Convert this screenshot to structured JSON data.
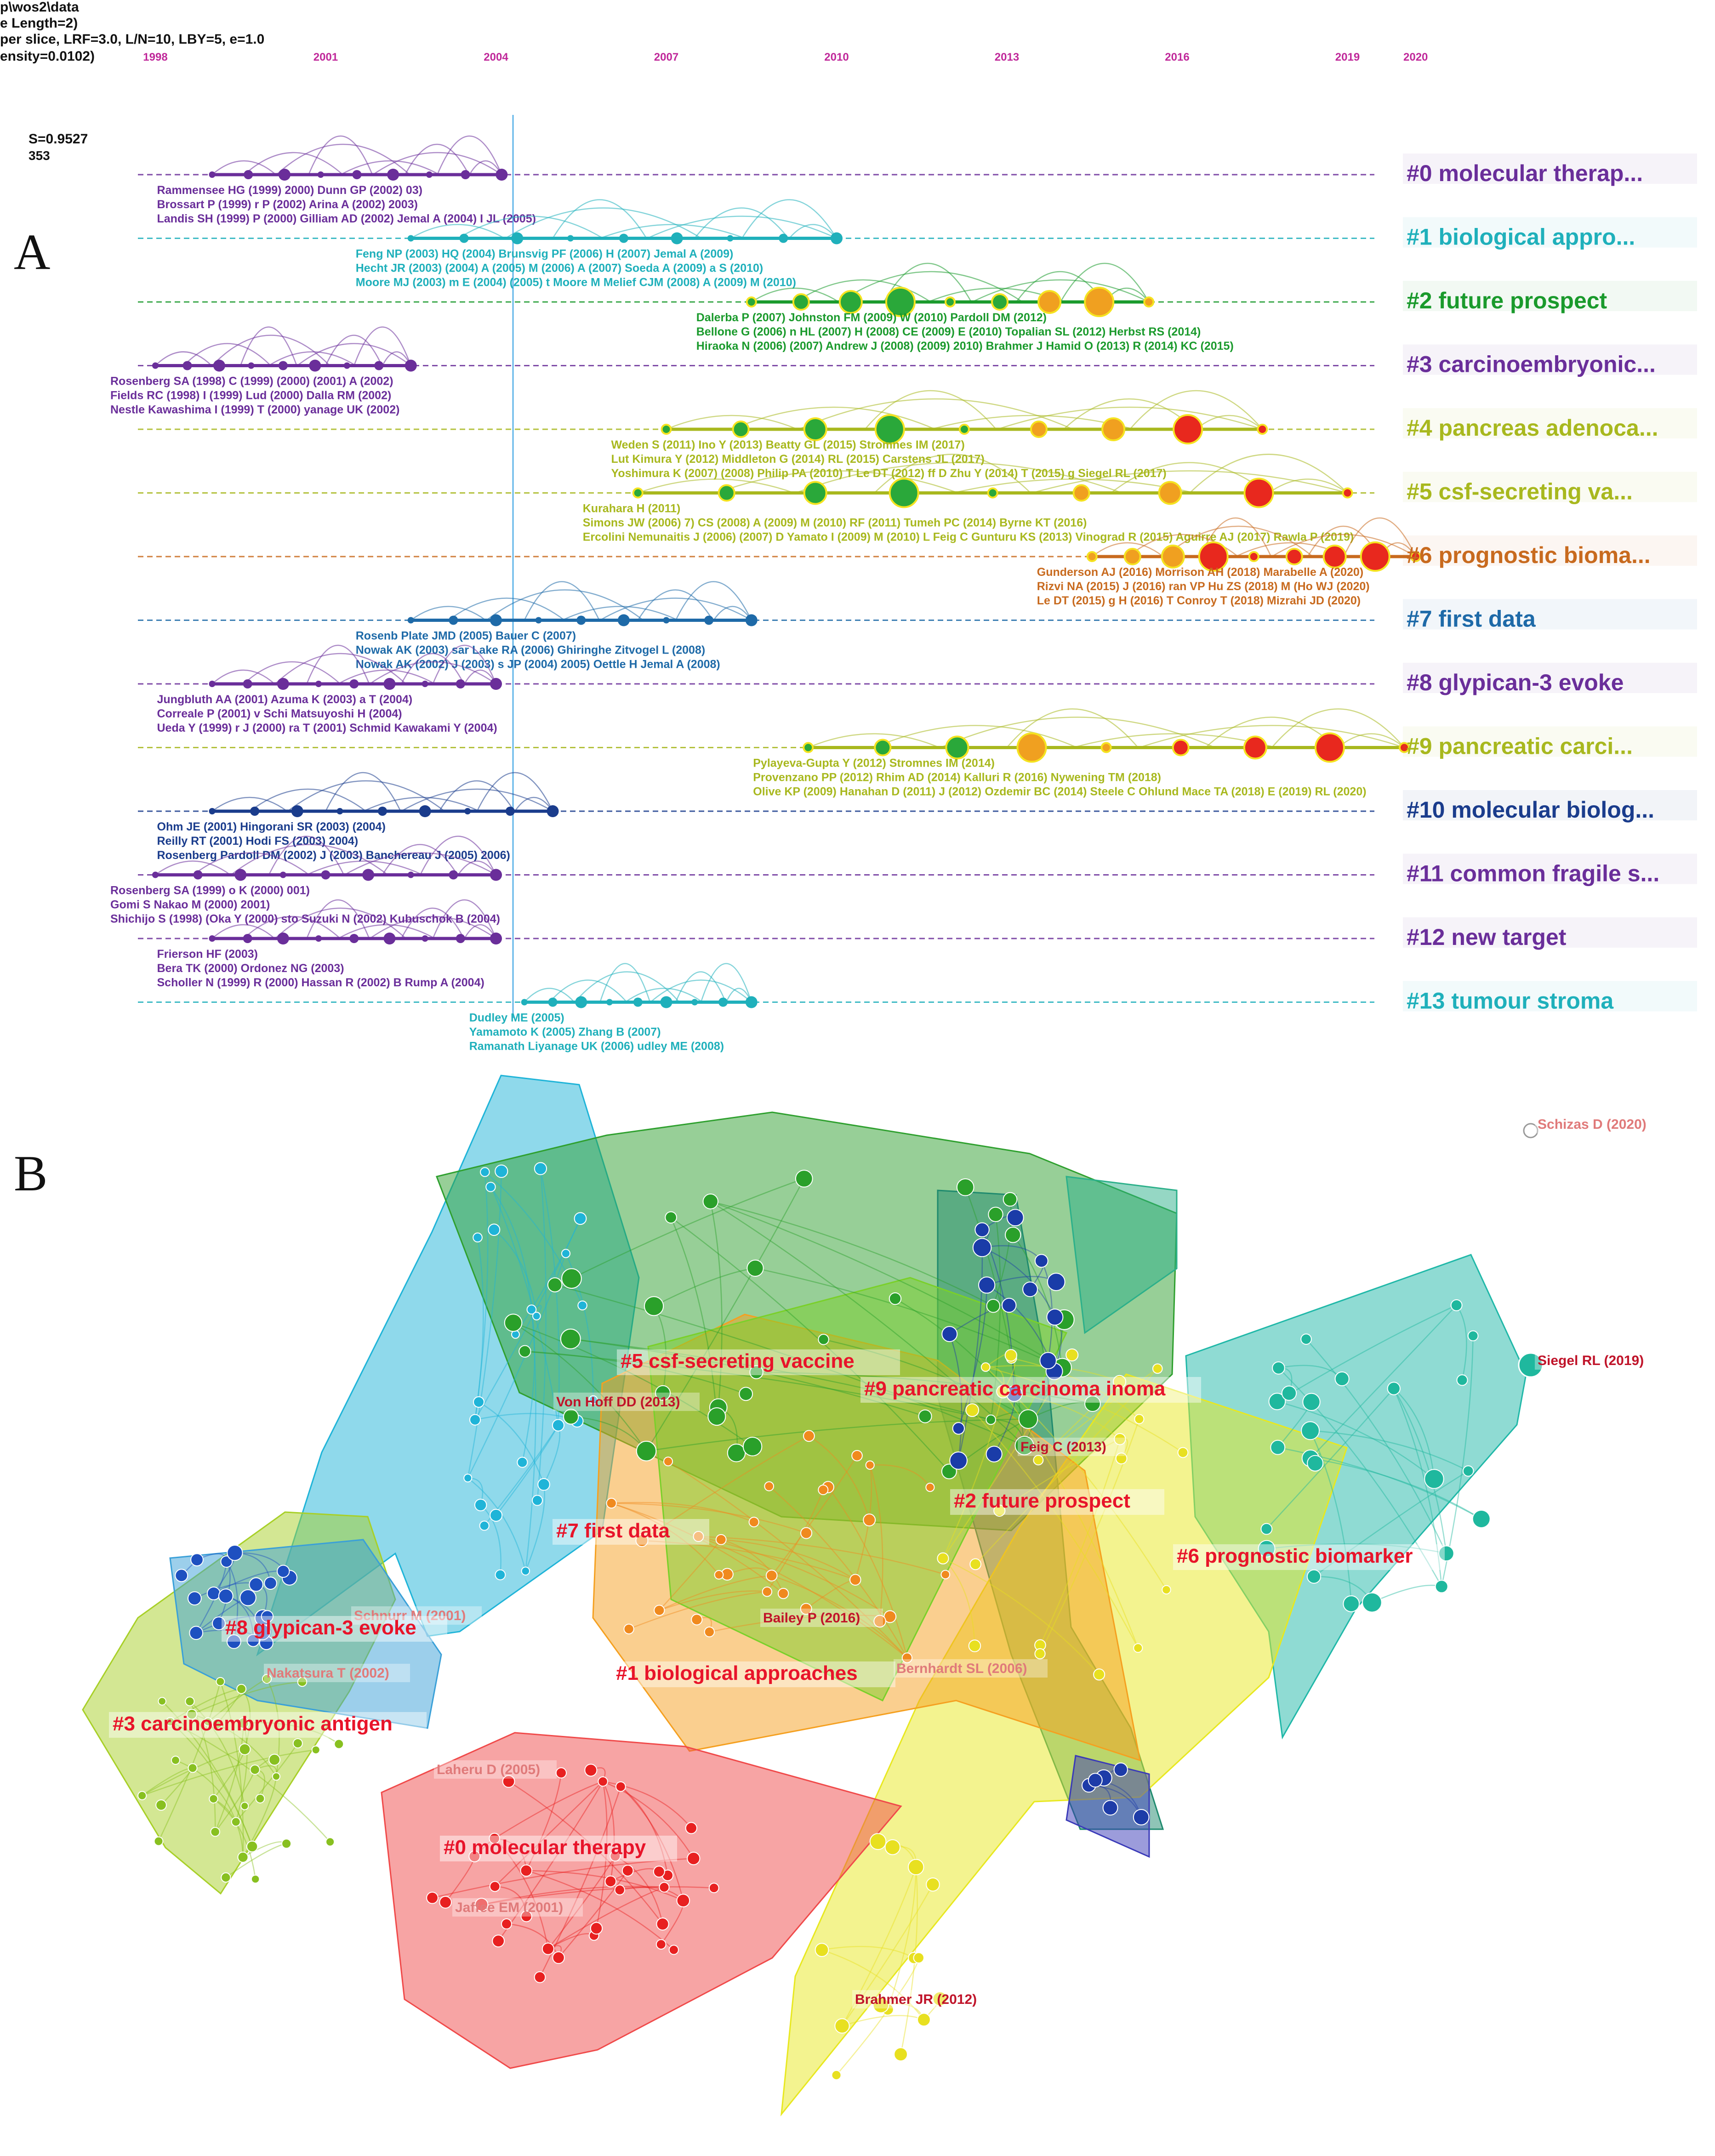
{
  "panel_a": {
    "letter": "A",
    "meta": [
      "p\\wos2\\data",
      "e Length=2)",
      "per slice, LRF=3.0, L/N=10, LBY=5, e=1.0",
      "ensity=0.0102)",
      "S=0.9527",
      "353"
    ],
    "years": [
      "1998",
      "2001",
      "2004",
      "2007",
      "2010",
      "2013",
      "2016",
      "2019",
      "2020"
    ],
    "year_values": [
      1998,
      2001,
      2004,
      2007,
      2010,
      2013,
      2016,
      2019,
      2020.2
    ],
    "clusters": [
      {
        "id": "#0",
        "label": "#0 molecular therap...",
        "color": "#6a2e9a",
        "span": [
          1999,
          2004.1
        ],
        "cites": [
          "Rammensee HG (1999) 2000) Dunn GP (2002) 03)",
          "Brossart P (1999) r P (2002) Arina A (2002) 2003)",
          "Landis SH (1999) P (2000) Gilliam AD (2002) Jemal A (2004) I JL (2005)"
        ]
      },
      {
        "id": "#1",
        "label": "#1 biological appro...",
        "color": "#1fb0bb",
        "span": [
          2002.5,
          2010
        ],
        "cites": [
          "Feng NP (2003) HQ (2004) Brunsvig PF (2006) H (2007) Jemal A (2009)",
          "Hecht JR (2003) (2004) A (2005) M (2006) A (2007) Soeda A (2009) a S (2010)",
          "Moore MJ (2003) m E (2004) (2005) t Moore M Melief CJM (2008) A (2009) M (2010)"
        ]
      },
      {
        "id": "#2",
        "label": "#2 future prospect",
        "color": "#1a9a2c",
        "span": [
          2008.5,
          2015.5
        ],
        "cites": [
          "Dalerba P (2007) Johnston FM (2009) W (2010) Pardoll DM (2012)",
          "Bellone G (2006) n HL (2007) H (2008) CE (2009) E (2010) Topalian SL (2012) Herbst RS (2014)",
          "Hiraoka N (2006) (2007) Andrew J (2008) (2009) 2010) Brahmer J Hamid O (2013) R (2014) KC (2015)"
        ]
      },
      {
        "id": "#3",
        "label": "#3 carcinoembryonic...",
        "color": "#6a2e9a",
        "span": [
          1998,
          2002.5
        ],
        "cites": [
          "Rosenberg SA (1998) C (1999) (2000) (2001) A (2002)",
          "Fields RC (1998) I (1999) Lud (2000) Dalla RM (2002)",
          "Nestle Kawashima I (1999) T (2000) yanage UK (2002)"
        ]
      },
      {
        "id": "#4",
        "label": "#4 pancreas adenoca...",
        "color": "#a8b81e",
        "span": [
          2007,
          2017.5
        ],
        "cites": [
          "Weden S (2011) Ino Y (2013) Beatty GL (2015) Stromnes IM (2017)",
          "Lut Kimura Y (2012) Middleton G (2014) RL (2015) Carstens JL (2017)",
          "Yoshimura K (2007) (2008) Philip PA (2010) T Le DT (2012) ff D Zhu Y (2014) T (2015) g Siegel RL (2017)"
        ]
      },
      {
        "id": "#5",
        "label": "#5 csf-secreting va...",
        "color": "#a8b81e",
        "span": [
          2006.5,
          2019
        ],
        "cites": [
          "Kurahara H (2011)",
          "Simons JW (2006) 7) CS (2008) A (2009) M (2010) RF (2011) Tumeh PC (2014) Byrne KT (2016)",
          "Ercolini Nemunaitis J (2006) (2007) D Yamato I (2009) M (2010) L Feig C Gunturu KS (2013) Vinograd R (2015) Aguirre AJ (2017) Rawla P (2019)"
        ]
      },
      {
        "id": "#6",
        "label": "#6 prognostic bioma...",
        "color": "#c86a1e",
        "span": [
          2014.5,
          2020.2
        ],
        "cites": [
          "Gunderson AJ (2016) Morrison AH (2018) Marabelle A (2020)",
          "Rizvi NA (2015) J (2016) ran VP Hu ZS (2018) M (Ho WJ (2020)",
          "Le DT (2015) g H (2016) T Conroy T (2018) Mizrahi JD (2020)"
        ]
      },
      {
        "id": "#7",
        "label": "#7 first data",
        "color": "#1e6aa8",
        "span": [
          2002.5,
          2008.5
        ],
        "cites": [
          "Rosenb Plate JMD (2005) Bauer C (2007)",
          "Nowak AK (2003) sar Lake RA (2006) Ghiringhe Zitvogel L (2008)",
          "Nowak AK (2002) J (2003) s JP (2004) 2005) Oettle H Jemal A (2008)"
        ]
      },
      {
        "id": "#8",
        "label": "#8 glypican-3 evoke",
        "color": "#6a2e9a",
        "span": [
          1999,
          2004
        ],
        "cites": [
          "Jungbluth AA (2001) Azuma K (2003) a T (2004)",
          "Correale P (2001) v Schi Matsuyoshi H (2004)",
          "Ueda Y (1999) r J (2000) ra T (2001) Schmid Kawakami Y (2004)"
        ]
      },
      {
        "id": "#9",
        "label": "#9 pancreatic carci...",
        "color": "#a8b81e",
        "span": [
          2009.5,
          2020
        ],
        "cites": [
          "Pylayeva-Gupta Y (2012) Stromnes IM (2014)",
          "Provenzano PP (2012) Rhim AD (2014) Kalluri R (2016) Nywening TM (2018)",
          "Olive KP (2009) Hanahan D (2011) J (2012) Ozdemir BC (2014) Steele C Ohlund Mace TA (2018) E (2019) RL (2020)"
        ]
      },
      {
        "id": "#10",
        "label": "#10 molecular biolog...",
        "color": "#1a3c8c",
        "span": [
          1999,
          2005
        ],
        "cites": [
          "Ohm JE (2001) Hingorani SR (2003) (2004)",
          "Reilly RT (2001) Hodi FS (2003) 2004)",
          "Rosenberg Pardoll DM (2002) J (2003) Banchereau J (2005) 2006)"
        ]
      },
      {
        "id": "#11",
        "label": "#11 common fragile s...",
        "color": "#6a2e9a",
        "span": [
          1998,
          2004
        ],
        "cites": [
          "Rosenberg SA (1999) o K (2000) 001)",
          "Gomi S Nakao M (2000) 2001)",
          "Shichijo S (1998) (Oka Y (2000) sto Suzuki N (2002) Kubuschok B (2004)"
        ]
      },
      {
        "id": "#12",
        "label": "#12 new target",
        "color": "#6a2e9a",
        "span": [
          1999,
          2004
        ],
        "cites": [
          "Frierson HF (2003)",
          "Bera TK (2000) Ordonez NG (2003)",
          "Scholler N (1999) R (2000) Hassan R (2002) B Rump A (2004)"
        ]
      },
      {
        "id": "#13",
        "label": "#13 tumour stroma",
        "color": "#1fb0bb",
        "span": [
          2004.5,
          2008.5
        ],
        "cites": [
          "Dudley ME (2005)",
          "Yamamoto K (2005) Zhang B (2007)",
          "Ramanath Liyanage UK (2006) udley ME (2008)"
        ]
      }
    ]
  },
  "panel_b": {
    "letter": "B",
    "labels": [
      {
        "text": "#5 csf-secreting vaccine"
      },
      {
        "text": "#9 pancreatic carcinoma inoma"
      },
      {
        "text": "#7 first data"
      },
      {
        "text": "#2 future prospect"
      },
      {
        "text": "#6 prognostic biomarker"
      },
      {
        "text": "#8 glypican-3 evoke"
      },
      {
        "text": "#1 biological approaches"
      },
      {
        "text": "#3 carcinoembryonic antigen"
      },
      {
        "text": "#0 molecular therapy"
      }
    ],
    "cites": [
      {
        "text": "Schizas D (2020)",
        "color": "#e07a7a"
      },
      {
        "text": "Siegel RL (2019)",
        "color": "#c0142a"
      },
      {
        "text": "Von Hoff DD (2013)",
        "color": "#c0142a"
      },
      {
        "text": "Feig C (2013)",
        "color": "#c0142a"
      },
      {
        "text": "Schnurr M (2001)",
        "color": "#e07a7a"
      },
      {
        "text": "Bailey P (2016)",
        "color": "#c0142a"
      },
      {
        "text": "Nakatsura T (2002)",
        "color": "#e07a7a"
      },
      {
        "text": "Bernhardt SL (2006)",
        "color": "#e07a7a"
      },
      {
        "text": "Laheru D (2005)",
        "color": "#e07a7a"
      },
      {
        "text": "Jaffee EM (2001)",
        "color": "#e07a7a"
      },
      {
        "text": "Brahmer JR (2012)",
        "color": "#c0142a"
      }
    ]
  }
}
